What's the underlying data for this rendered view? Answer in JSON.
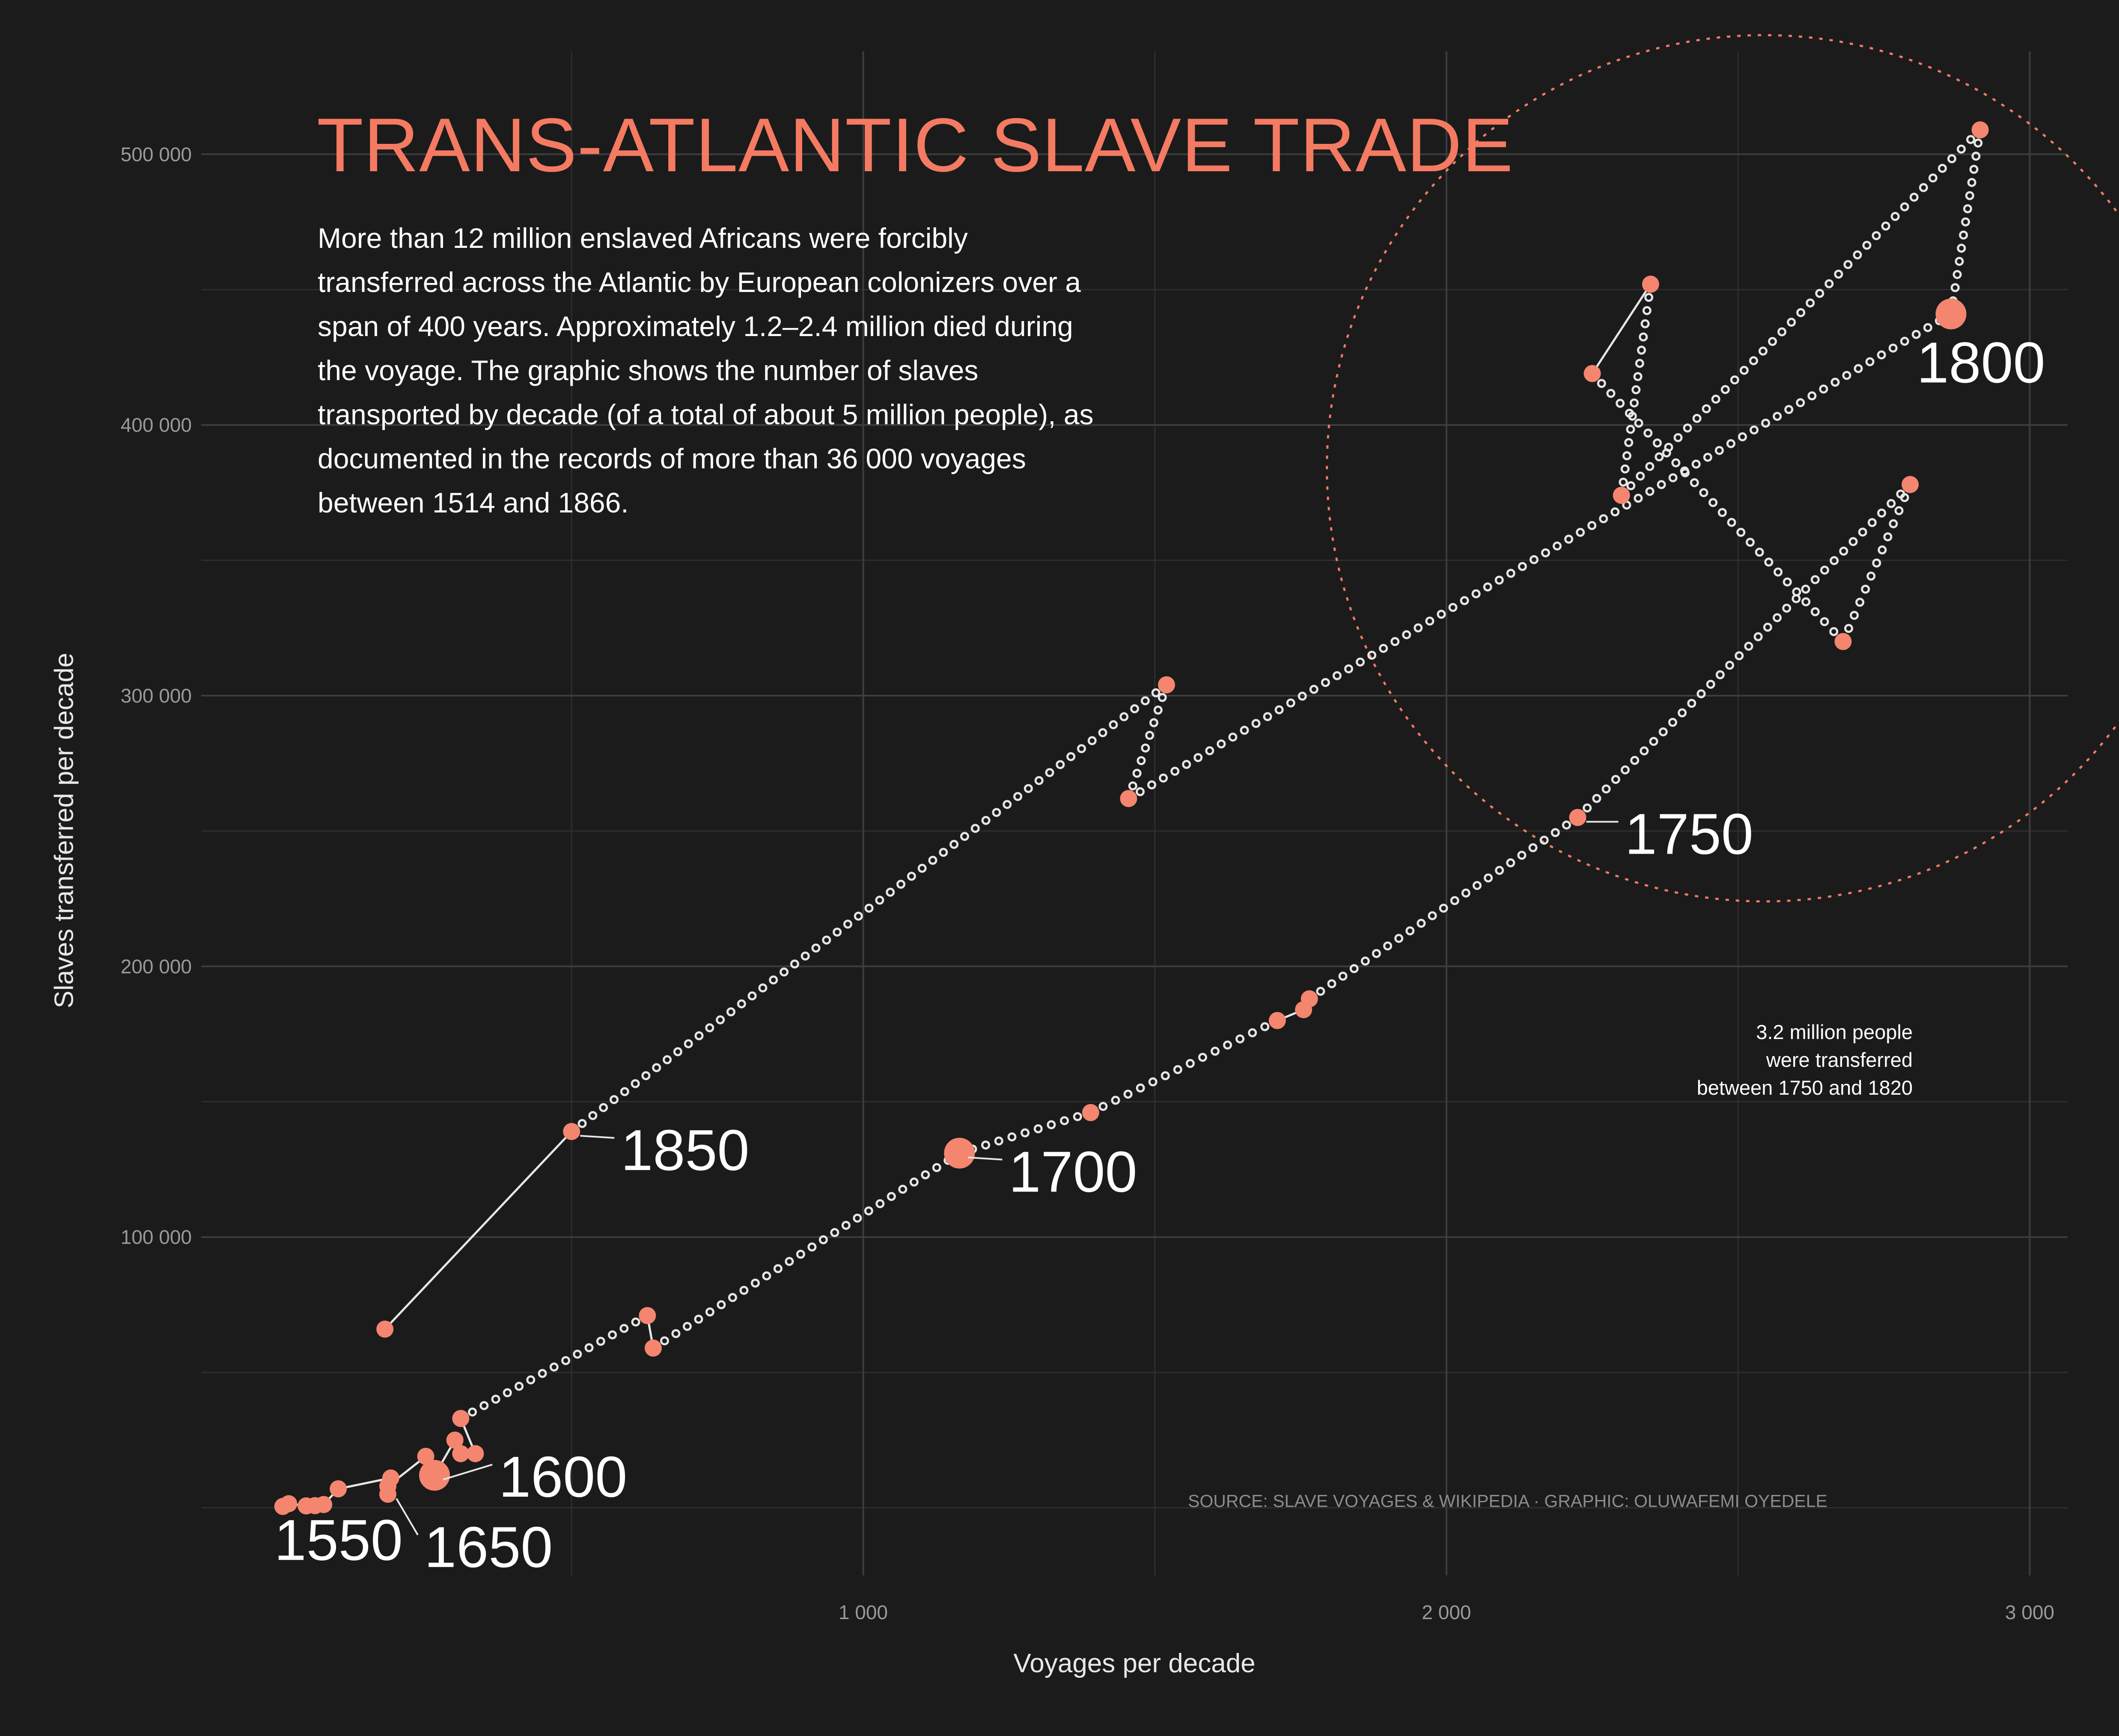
{
  "title": "TRANS-ATLANTIC SLAVE TRADE",
  "description": "More than 12 million enslaved Africans were forcibly transferred across the Atlantic by European colonizers over a span of 400 years. Approximately 1.2–2.4 million died during the voyage. The graphic shows the number of slaves transported by decade (of a total of about 5 million people), as documented in the records of more than 36 000 voyages between 1514 and 1866.",
  "annotation": "3.2 million people\nwere transferred\nbetween 1750 and 1820",
  "source": "SOURCE: SLAVE VOYAGES & WIKIPEDIA · GRAPHIC: OLUWAFEMI OYEDELE",
  "colors": {
    "background": "#1b1b1b",
    "accent": "#f47a62",
    "point": "#f4856e",
    "path": "#e6e6e6",
    "grid": "#3d3d3d"
  },
  "chart_data": {
    "type": "scatter",
    "title": "TRANS-ATLANTIC SLAVE TRADE",
    "xlabel": "Voyages per decade",
    "ylabel": "Slaves transferred per decade",
    "xlim": [
      -135,
      3065
    ],
    "ylim": [
      -25000,
      538000
    ],
    "x_ticks": [
      1000,
      2000,
      3000
    ],
    "x_tick_labels": [
      "1 000",
      "2 000",
      "3 000"
    ],
    "y_ticks": [
      100000,
      200000,
      300000,
      400000,
      500000
    ],
    "y_tick_labels": [
      "100 000",
      "200 000",
      "300 000",
      "400 000",
      "500 000"
    ],
    "grid": true,
    "points": [
      {
        "x": 5,
        "y": 500
      },
      {
        "x": 15,
        "y": 1500
      },
      {
        "x": 45,
        "y": 700
      },
      {
        "x": 60,
        "y": 800
      },
      {
        "x": 75,
        "y": 1200
      },
      {
        "x": 100,
        "y": 7000
      },
      {
        "x": 190,
        "y": 11000
      },
      {
        "x": 185,
        "y": 5000
      },
      {
        "x": 185,
        "y": 8000
      },
      {
        "x": 250,
        "y": 19000
      },
      {
        "x": 265,
        "y": 12000
      },
      {
        "x": 300,
        "y": 25000
      },
      {
        "x": 310,
        "y": 20000
      },
      {
        "x": 335,
        "y": 20000
      },
      {
        "x": 310,
        "y": 33000
      },
      {
        "x": 630,
        "y": 71000
      },
      {
        "x": 640,
        "y": 59000
      },
      {
        "x": 1165,
        "y": 131000
      },
      {
        "x": 1390,
        "y": 146000
      },
      {
        "x": 1710,
        "y": 180000
      },
      {
        "x": 1755,
        "y": 184000
      },
      {
        "x": 1765,
        "y": 188000
      },
      {
        "x": 2225,
        "y": 255000
      },
      {
        "x": 2795,
        "y": 378000
      },
      {
        "x": 2680,
        "y": 320000
      },
      {
        "x": 2250,
        "y": 419000
      },
      {
        "x": 2350,
        "y": 452000
      },
      {
        "x": 2300,
        "y": 374000
      },
      {
        "x": 2915,
        "y": 509000
      },
      {
        "x": 2865,
        "y": 441000
      },
      {
        "x": 1455,
        "y": 262000
      },
      {
        "x": 1520,
        "y": 304000
      },
      {
        "x": 500,
        "y": 139000
      },
      {
        "x": 180,
        "y": 66000
      }
    ],
    "highlighted_points": [
      {
        "label": "1550",
        "x": 5,
        "y": 500
      },
      {
        "label": "1600",
        "x": 265,
        "y": 12000
      },
      {
        "label": "1650",
        "x": 185,
        "y": 5000
      },
      {
        "label": "1700",
        "x": 1165,
        "y": 131000
      },
      {
        "label": "1750",
        "x": 2225,
        "y": 255000
      },
      {
        "label": "1800",
        "x": 2865,
        "y": 441000
      },
      {
        "label": "1850",
        "x": 500,
        "y": 139000
      }
    ],
    "highlight_circle": {
      "center": [
        2545,
        384000
      ],
      "radius_x": 750,
      "radius_y": 160000
    }
  }
}
